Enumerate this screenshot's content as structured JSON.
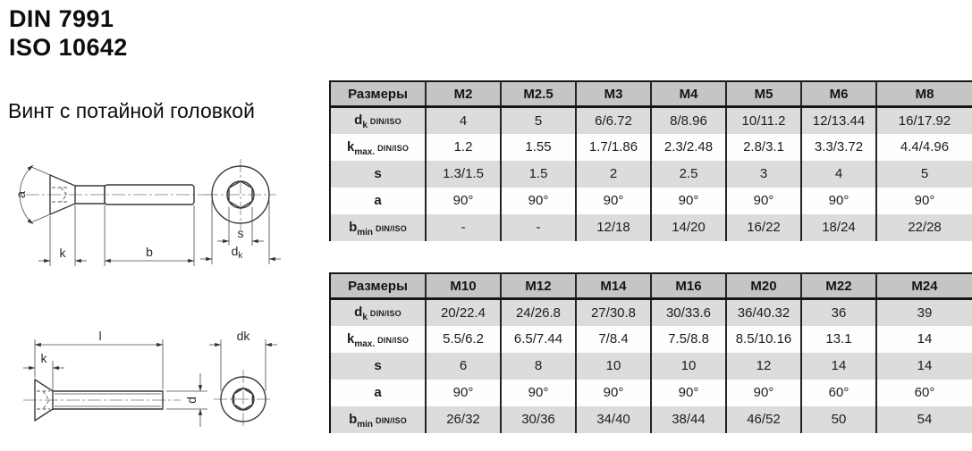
{
  "page": {
    "title_din": "DIN 7991",
    "title_iso": "ISO 10642",
    "product_name": "Винт с потайной головкой"
  },
  "colors": {
    "header_bg": "#c5c5c5",
    "row_alt_bg": "#dcdcdc",
    "table_border": "#161616",
    "drawing_line": "#3a3a3a"
  },
  "drawings": {
    "side_view": {
      "angle": "a",
      "head_height": "k",
      "thread_length": "b"
    },
    "end_view_top": {
      "socket_width": "s",
      "head_dia_main": "d",
      "head_dia_sub": "k"
    },
    "full_view": {
      "length": "l",
      "head_height": "k",
      "diameter": "d"
    },
    "end_view_bottom": {
      "head_diameter": "dk"
    }
  },
  "tables": [
    {
      "header": [
        "Размеры",
        "M2",
        "M2.5",
        "M3",
        "M4",
        "M5",
        "M6",
        "M8"
      ],
      "rows": [
        {
          "label": {
            "main": "d",
            "sub": "k",
            "suffix": "DIN/ISO"
          },
          "values": [
            "4",
            "5",
            "6/6.72",
            "8/8.96",
            "10/11.2",
            "12/13.44",
            "16/17.92"
          ]
        },
        {
          "label": {
            "main": "k",
            "sub": "max.",
            "suffix": "DIN/ISO"
          },
          "values": [
            "1.2",
            "1.55",
            "1.7/1.86",
            "2.3/2.48",
            "2.8/3.1",
            "3.3/3.72",
            "4.4/4.96"
          ]
        },
        {
          "label": {
            "main": "s"
          },
          "values": [
            "1.3/1.5",
            "1.5",
            "2",
            "2.5",
            "3",
            "4",
            "5"
          ]
        },
        {
          "label": {
            "main": "a"
          },
          "values": [
            "90°",
            "90°",
            "90°",
            "90°",
            "90°",
            "90°",
            "90°"
          ]
        },
        {
          "label": {
            "main": "b",
            "sub": "min",
            "suffix": "DIN/ISO"
          },
          "values": [
            "-",
            "-",
            "12/18",
            "14/20",
            "16/22",
            "18/24",
            "22/28"
          ]
        }
      ]
    },
    {
      "header": [
        "Размеры",
        "M10",
        "M12",
        "M14",
        "M16",
        "M20",
        "M22",
        "M24"
      ],
      "rows": [
        {
          "label": {
            "main": "d",
            "sub": "k",
            "suffix": "DIN/ISO"
          },
          "values": [
            "20/22.4",
            "24/26.8",
            "27/30.8",
            "30/33.6",
            "36/40.32",
            "36",
            "39"
          ]
        },
        {
          "label": {
            "main": "k",
            "sub": "max.",
            "suffix": "DIN/ISO"
          },
          "values": [
            "5.5/6.2",
            "6.5/7.44",
            "7/8.4",
            "7.5/8.8",
            "8.5/10.16",
            "13.1",
            "14"
          ]
        },
        {
          "label": {
            "main": "s"
          },
          "values": [
            "6",
            "8",
            "10",
            "10",
            "12",
            "14",
            "14"
          ]
        },
        {
          "label": {
            "main": "a"
          },
          "values": [
            "90°",
            "90°",
            "90°",
            "90°",
            "90°",
            "60°",
            "60°"
          ]
        },
        {
          "label": {
            "main": "b",
            "sub": "min",
            "suffix": "DIN/ISO"
          },
          "values": [
            "26/32",
            "30/36",
            "34/40",
            "38/44",
            "46/52",
            "50",
            "54"
          ]
        }
      ]
    }
  ]
}
